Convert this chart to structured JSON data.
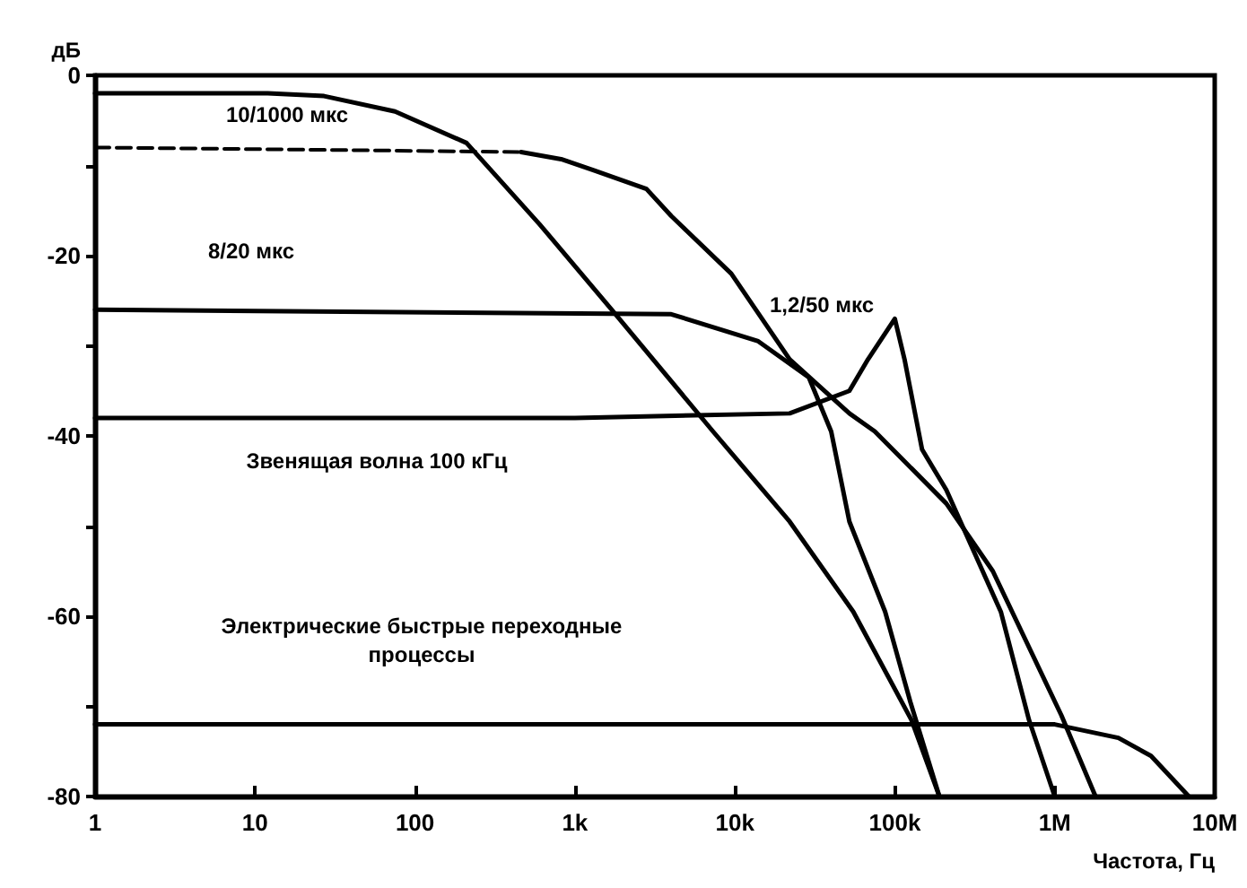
{
  "chart_data": {
    "type": "line",
    "xlabel": "Частота, Гц",
    "ylabel": "дБ",
    "log": "x",
    "xlim": [
      1,
      10000000
    ],
    "ylim": [
      -80,
      0
    ],
    "xticks": [
      1,
      10,
      100,
      {
        "value": 1000,
        "label": "1k"
      },
      {
        "value": 10000,
        "label": "10k"
      },
      {
        "value": 100000,
        "label": "100k"
      },
      {
        "value": 1000000,
        "label": "1M"
      },
      {
        "value": 10000000,
        "label": "10M"
      }
    ],
    "yticks": [
      0,
      {
        "value": -10,
        "label": null
      },
      -20,
      {
        "value": -30,
        "label": null
      },
      -40,
      {
        "value": -50,
        "label": null
      },
      -60,
      {
        "value": -70,
        "label": null
      },
      -80
    ],
    "grid": false,
    "legend": false,
    "marker": "none",
    "series": [
      {
        "name": "10/1000 мкс",
        "color": "#000000",
        "line_style": "solid",
        "x": [
          1,
          12,
          27,
          75,
          210,
          600,
          1700,
          7300,
          22000,
          55000,
          127000,
          190000
        ],
        "values": [
          -2,
          -2,
          -2.3,
          -4,
          -7.5,
          -16.5,
          -26,
          -39.5,
          -49.5,
          -59.5,
          -71.5,
          -80
        ]
      },
      {
        "color": "#000000",
        "line_style": "dashed",
        "x": [
          1,
          460
        ],
        "values": [
          -8,
          -8.5
        ]
      },
      {
        "name": "1,2/50 мкс",
        "color": "#000000",
        "line_style": "solid",
        "x": [
          460,
          820,
          1300,
          2800,
          4000,
          9500,
          22000,
          52000,
          75000,
          210000,
          410000,
          1100000,
          1800000
        ],
        "values": [
          -8.5,
          -9.3,
          -10.5,
          -12.6,
          -15.6,
          -22,
          -31.5,
          -37.5,
          -39.5,
          -47.5,
          -55,
          -71,
          -80
        ]
      },
      {
        "name": "8/20 мкс",
        "color": "#000000",
        "line_style": "solid",
        "x": [
          1,
          4000,
          14000,
          29000,
          40000,
          52000,
          87000,
          125000,
          190000
        ],
        "values": [
          -26,
          -26.5,
          -29.5,
          -33.5,
          -39.5,
          -49.5,
          -59.5,
          -69.5,
          -80
        ]
      },
      {
        "name": "Звенящая волна 100 кГц",
        "color": "#000000",
        "line_style": "solid",
        "x": [
          1,
          1000,
          22000,
          52000,
          68000,
          100000,
          115000,
          148000,
          210000,
          460000,
          690000,
          1000000
        ],
        "values": [
          -38,
          -38,
          -37.5,
          -35,
          -31.5,
          -27,
          -31.5,
          -41.5,
          -46,
          -59.5,
          -71.5,
          -80
        ]
      },
      {
        "name": "Электрические быстрые переходные\nпроцессы",
        "color": "#000000",
        "line_style": "solid",
        "x": [
          1,
          1000000,
          2500000,
          4000000,
          6900000
        ],
        "values": [
          -72,
          -72,
          -73.5,
          -75.5,
          -80
        ]
      }
    ]
  }
}
